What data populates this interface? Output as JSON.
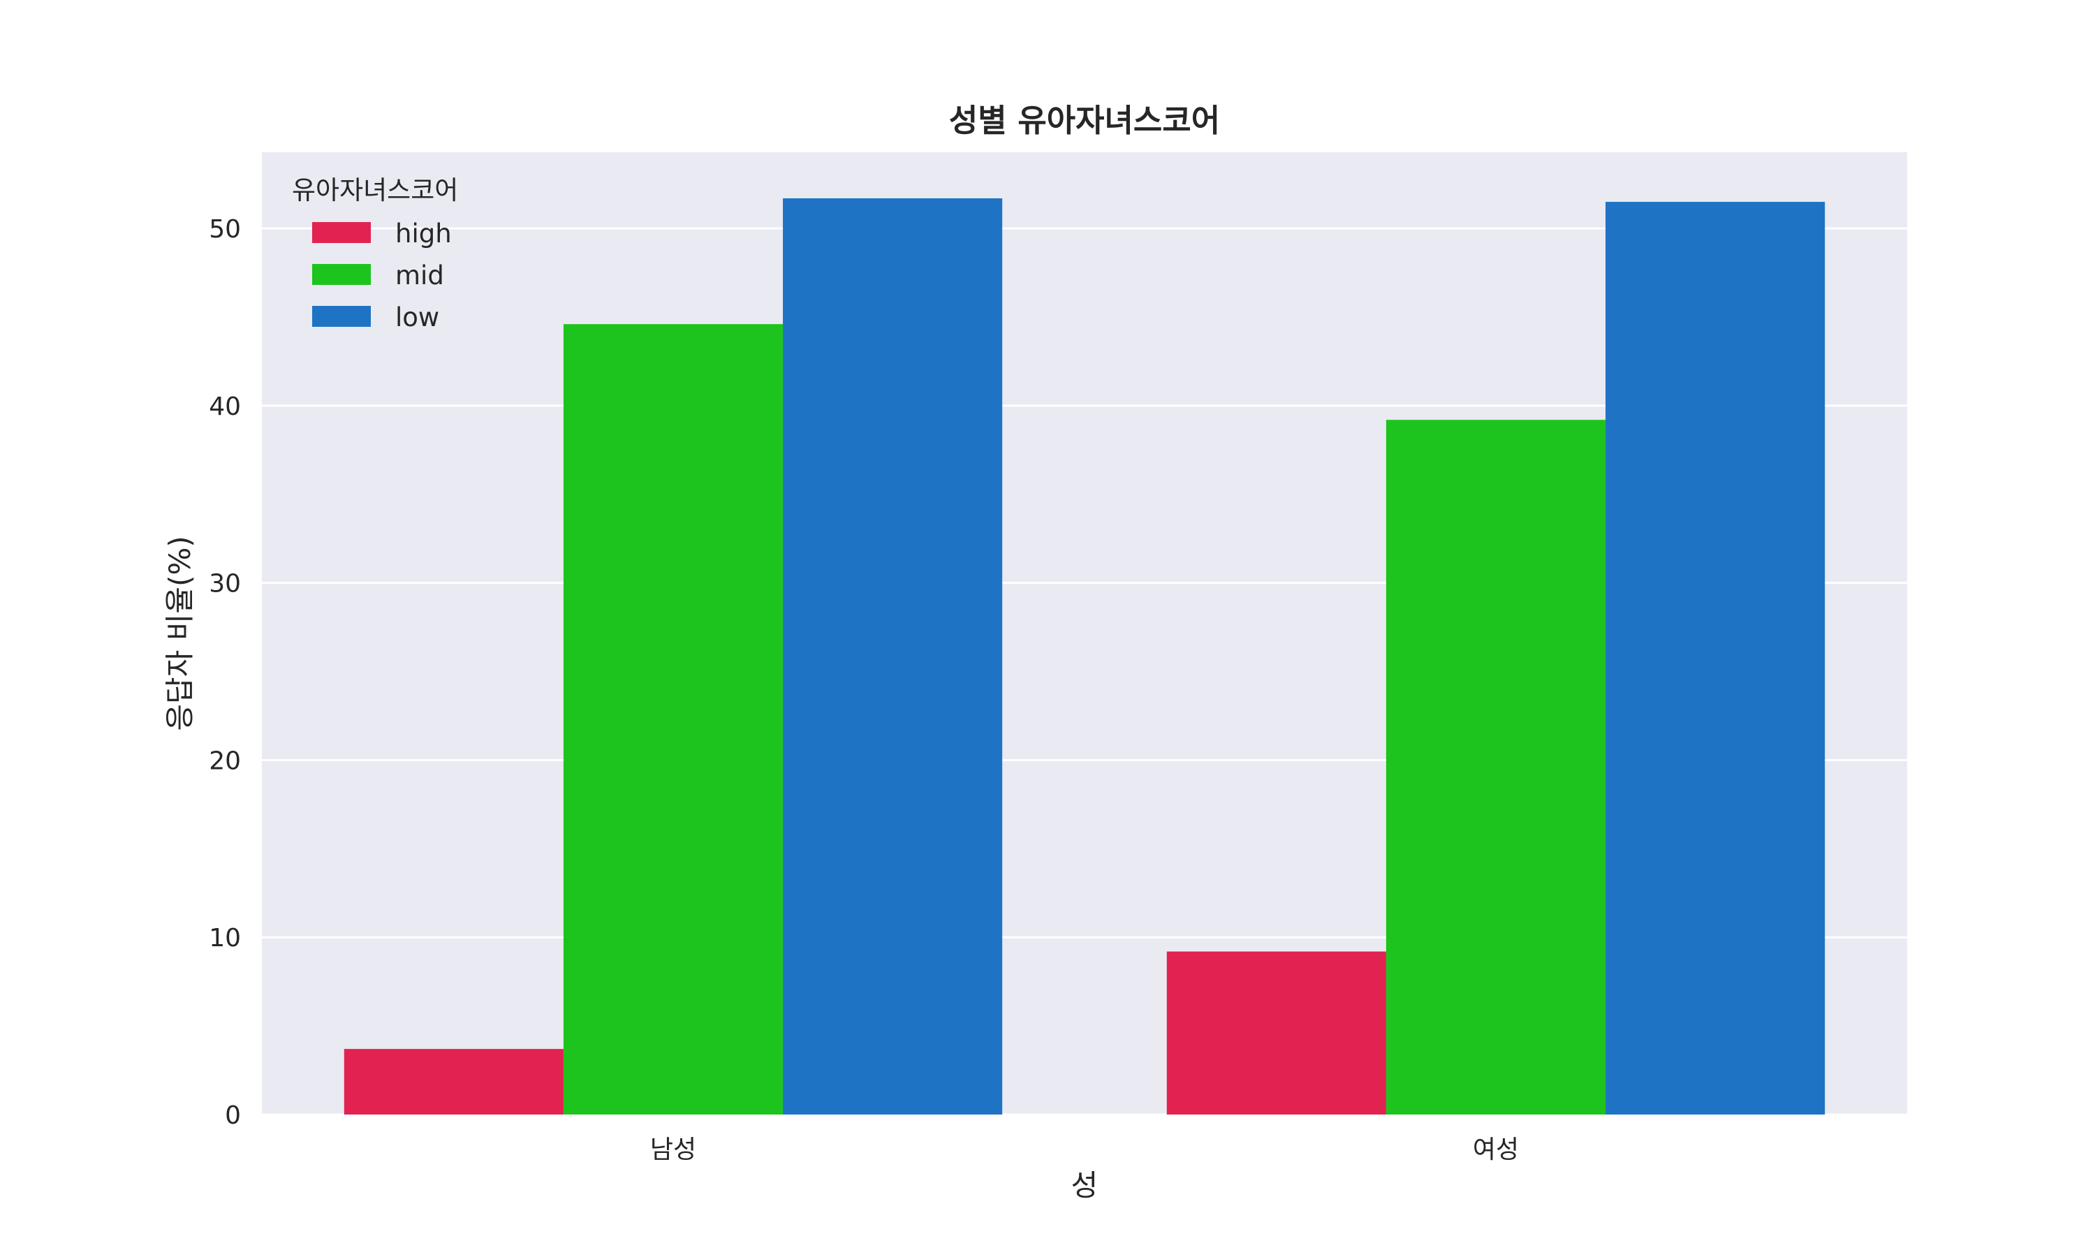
{
  "chart_data": {
    "type": "bar",
    "title": "성별 유아자녀스코어",
    "xlabel": "성",
    "ylabel": "응답자 비율(%)",
    "categories": [
      "남성",
      "여성"
    ],
    "series": [
      {
        "name": "high",
        "color": "#e22251",
        "values": [
          3.7,
          9.2
        ]
      },
      {
        "name": "mid",
        "color": "#1dc41d",
        "values": [
          44.6,
          39.2
        ]
      },
      {
        "name": "low",
        "color": "#1f73c4",
        "values": [
          51.7,
          51.5
        ]
      }
    ],
    "ylim": [
      0,
      54.3
    ],
    "yticks": [
      "0",
      "10",
      "20",
      "30",
      "40",
      "50"
    ],
    "grid": true,
    "plot_background": "#eaeaf2",
    "legend": {
      "title": "유아자녀스코어",
      "position": "top-left"
    }
  }
}
